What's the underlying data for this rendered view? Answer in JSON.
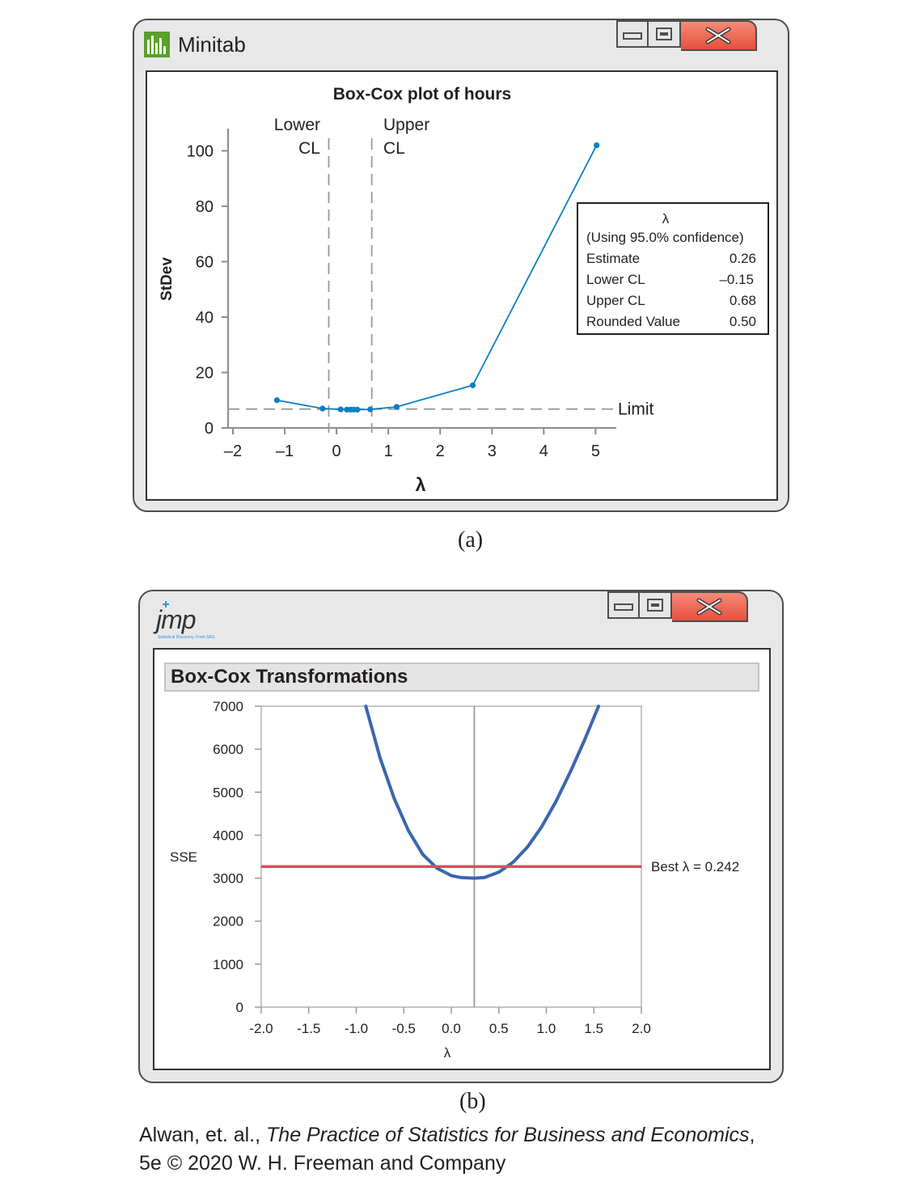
{
  "minitab": {
    "app_title": "Minitab",
    "chart_title": "Box-Cox plot of hours",
    "lower_cl_line1": "Lower",
    "lower_cl_line2": "CL",
    "upper_cl_line1": "Upper",
    "upper_cl_line2": "CL",
    "limit_label": "Limit",
    "legend": {
      "header": "λ",
      "subheader": "(Using 95.0% confidence)",
      "rows": [
        {
          "label": "Estimate",
          "value": "0.26"
        },
        {
          "label": "Lower CL",
          "value": "–0.15"
        },
        {
          "label": "Upper CL",
          "value": "0.68"
        },
        {
          "label": "Rounded Value",
          "value": "0.50"
        }
      ]
    },
    "caption": "(a)"
  },
  "jmp": {
    "logo_text": "jmp",
    "logo_sub": "Statistical Discovery. From SAS.",
    "panel_title": "Box-Cox Transformations",
    "best_label": "Best λ = 0.242",
    "caption": "(b)"
  },
  "credit": {
    "prefix": "Alwan, et. al., ",
    "book": "The Practice of Statistics for Business and Economics",
    "suffix": ",",
    "line2": "5e © 2020 W. H. Freeman and Company"
  },
  "colors": {
    "minitab_line": "#0a7fc4",
    "jmp_curve": "#3a66b0",
    "jmp_best": "#e8465e",
    "close_button": "#ee6a55"
  },
  "chart_data": [
    {
      "type": "line",
      "title": "Box-Cox plot of hours",
      "xlabel": "λ",
      "ylabel": "StDev",
      "xlim": [
        -2,
        5.4
      ],
      "ylim": [
        0,
        108
      ],
      "xticks": [
        -2,
        -1,
        0,
        1,
        2,
        3,
        4,
        5
      ],
      "xtick_labels": [
        "–2",
        "–1",
        "0",
        "1",
        "2",
        "3",
        "4",
        "5"
      ],
      "yticks": [
        0,
        20,
        40,
        60,
        80,
        100
      ],
      "series": [
        {
          "x": [
            -1.15,
            -0.27,
            0.08,
            0.2,
            0.27,
            0.33,
            0.4,
            0.65,
            1.16,
            2.63,
            5.02
          ],
          "y": [
            10,
            7,
            6.7,
            6.6,
            6.6,
            6.6,
            6.6,
            6.7,
            7.6,
            15.4,
            102
          ]
        }
      ],
      "vlines": [
        {
          "label": "Lower CL",
          "x": -0.15
        },
        {
          "label": "Upper CL",
          "x": 0.68
        }
      ],
      "hline": {
        "label": "Limit",
        "y": 6.8
      },
      "grid": false,
      "legend_position": "right"
    },
    {
      "type": "line",
      "title": "Box-Cox Transformations",
      "xlabel": "λ",
      "ylabel": "SSE",
      "xlim": [
        -2.0,
        2.0
      ],
      "ylim": [
        0,
        7000
      ],
      "xticks": [
        -2.0,
        -1.5,
        -1.0,
        -0.5,
        0.0,
        0.5,
        1.0,
        1.5,
        2.0
      ],
      "xtick_labels": [
        "-2.0",
        "-1.5",
        "-1.0",
        "-0.5",
        "0.0",
        "0.5",
        "1.0",
        "1.5",
        "2.0"
      ],
      "yticks": [
        0,
        1000,
        2000,
        3000,
        4000,
        5000,
        6000,
        7000
      ],
      "series": [
        {
          "x": [
            -0.9,
            -0.75,
            -0.6,
            -0.45,
            -0.3,
            -0.15,
            0.0,
            0.1,
            0.242,
            0.35,
            0.5,
            0.65,
            0.8,
            0.95,
            1.1,
            1.25,
            1.4,
            1.55
          ],
          "y": [
            7000,
            5800,
            4850,
            4100,
            3550,
            3230,
            3060,
            3015,
            3000,
            3015,
            3140,
            3370,
            3720,
            4190,
            4780,
            5460,
            6200,
            7000
          ]
        }
      ],
      "hline": {
        "label": "Best λ = 0.242",
        "y": 3270
      },
      "vline_x": 0.242,
      "grid": false
    }
  ]
}
